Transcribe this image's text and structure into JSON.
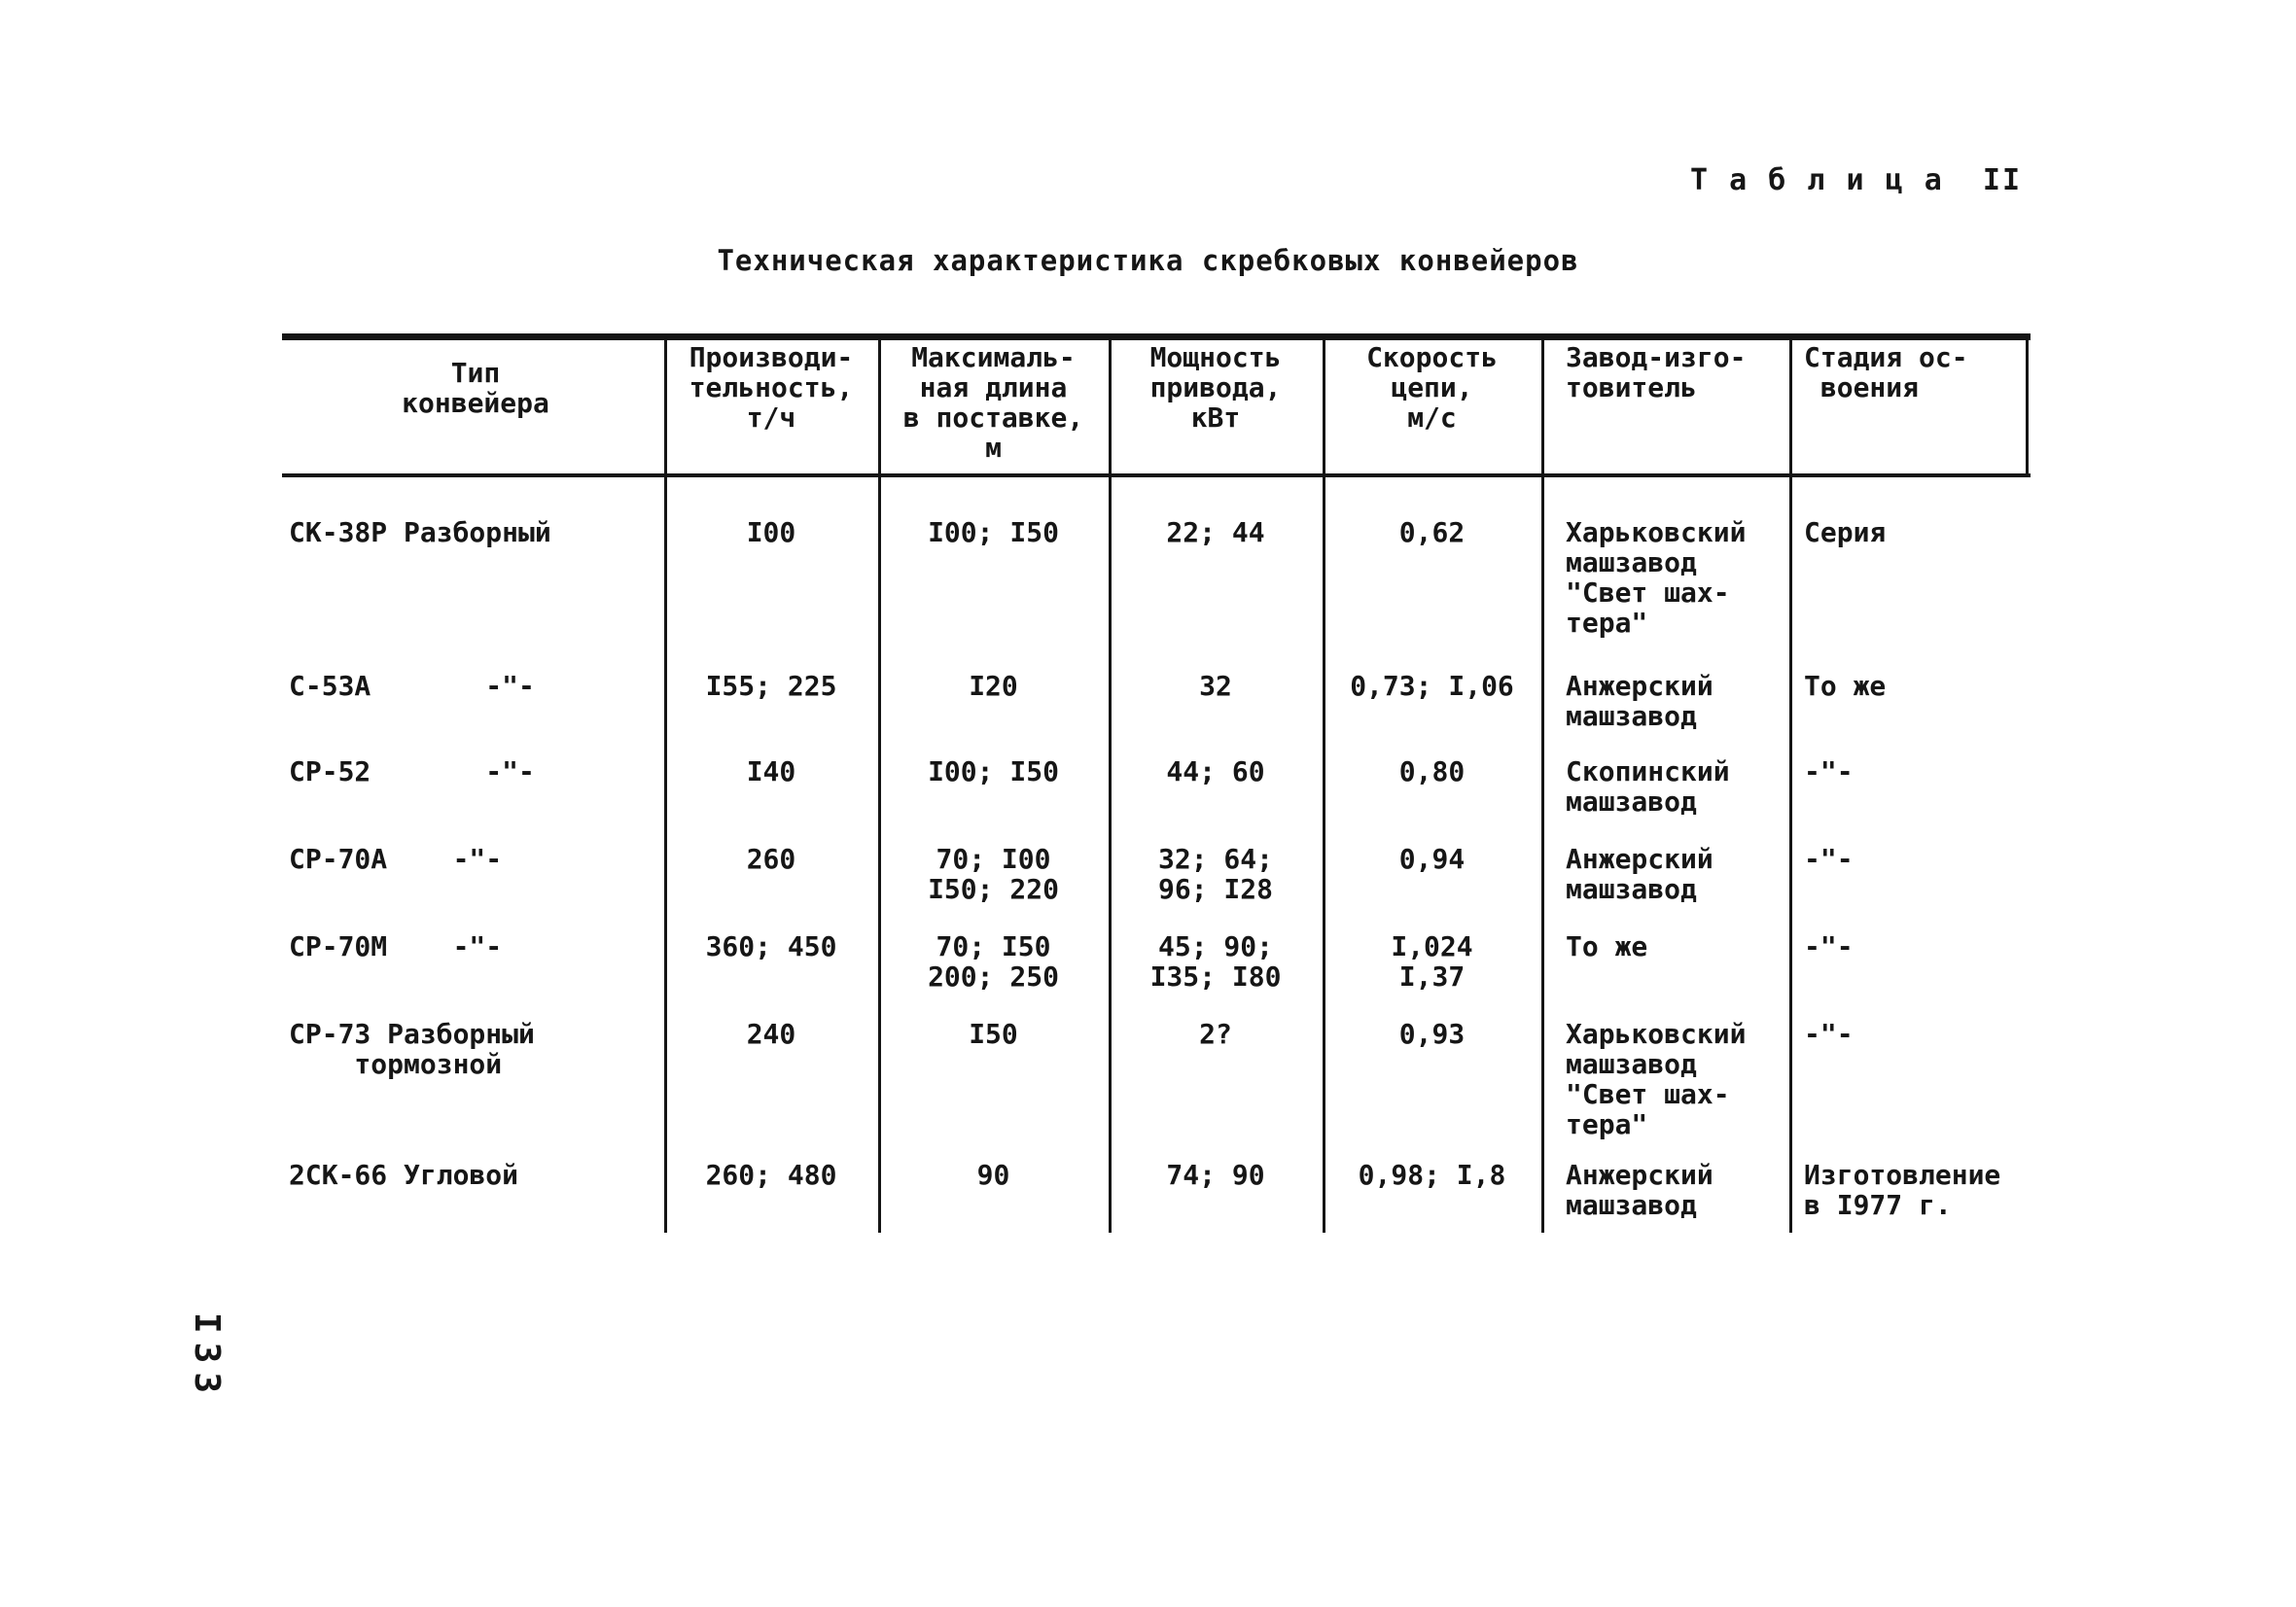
{
  "page": {
    "table_label": "Т а б л и ц а  II",
    "title": "Техническая характеристика скребковых конвейеров",
    "page_number": "I33"
  },
  "table": {
    "headers": [
      "Тип\nконвейера",
      "Производи-\nтельность,\nт/ч",
      "Максималь-\nная длина\nв поставке,\nм",
      "Мощность\nпривода,\nкВт",
      "Скорость\nцепи,\nм/с",
      "Завод-изго-\nтовитель",
      "Стадия ос-\n воения"
    ],
    "rows": [
      [
        "СК-38Р Разборный",
        "I00",
        "I00; I50",
        "22; 44",
        "0,62",
        "Харьковский\nмашзавод\n\"Свет шах-\nтера\"",
        "Серия"
      ],
      [
        "С-53А       -\"-",
        "I55; 225",
        "I20",
        "32",
        "0,73; I,06",
        "Анжерский\nмашзавод",
        "То же"
      ],
      [
        "СР-52       -\"-",
        "I40",
        "I00; I50",
        "44; 60",
        "0,80",
        "Скопинский\nмашзавод",
        "-\"-"
      ],
      [
        "СР-70А    -\"-",
        "260",
        "70; I00\nI50; 220",
        "32; 64;\n96; I28",
        "0,94",
        "Анжерский\nмашзавод",
        "-\"-"
      ],
      [
        "СР-70М    -\"-",
        "360; 450",
        "70; I50\n200; 250",
        "45; 90;\nI35; I80",
        "I,024\nI,37",
        "То же",
        "-\"-"
      ],
      [
        "СР-73 Разборный\n    тормозной",
        "240",
        "I50",
        "2?",
        "0,93",
        "Харьковский\nмашзавод\n\"Свет шах-\nтера\"",
        "-\"-"
      ],
      [
        "2СК-66 Угловой",
        "260; 480",
        "90",
        "74; 90",
        "0,98; I,8",
        "Анжерский\nмашзавод",
        "Изготовление\nв I977 г."
      ]
    ]
  }
}
